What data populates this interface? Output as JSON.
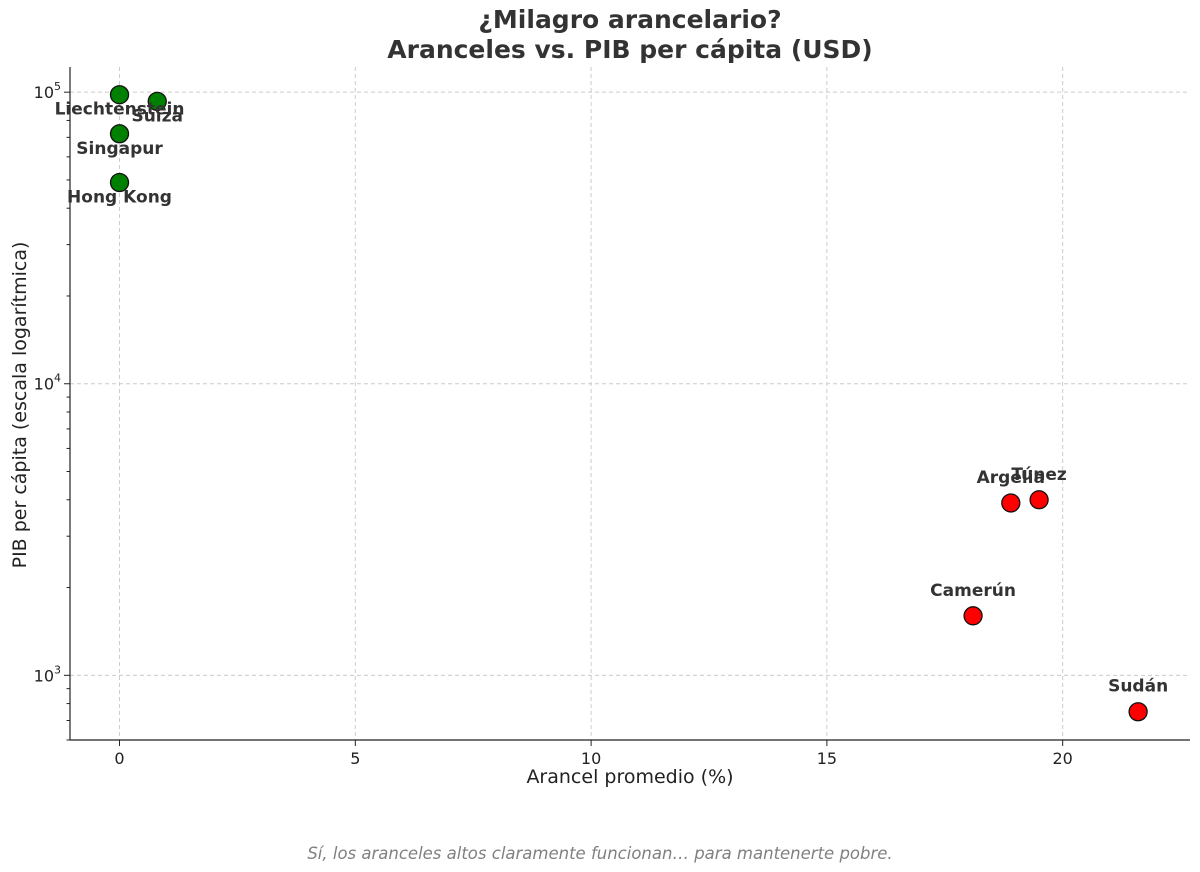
{
  "chart_data": {
    "type": "scatter",
    "title": "¿Milagro arancelario?",
    "subtitle": "Aranceles vs. PIB per cápita (USD)",
    "xlabel": "Arancel promedio (%)",
    "ylabel": "PIB per cápita (escala logarítmica)",
    "x_scale": "linear",
    "y_scale": "log",
    "xlim": [
      -1.05,
      22.7
    ],
    "ylim": [
      600,
      122000
    ],
    "x_ticks": [
      0,
      5,
      10,
      15,
      20
    ],
    "y_ticks": [
      {
        "value": 1000,
        "base": "10",
        "exp": "3"
      },
      {
        "value": 10000,
        "base": "10",
        "exp": "4"
      },
      {
        "value": 100000,
        "base": "10",
        "exp": "5"
      }
    ],
    "grid": true,
    "points": [
      {
        "label": "Liechtenstein",
        "x": 0.0,
        "y": 98000,
        "color": "#008000"
      },
      {
        "label": "Suiza",
        "x": 0.8,
        "y": 93000,
        "color": "#008000"
      },
      {
        "label": "Singapur",
        "x": 0.0,
        "y": 72000,
        "color": "#008000"
      },
      {
        "label": "Hong Kong",
        "x": 0.0,
        "y": 49000,
        "color": "#008000"
      },
      {
        "label": "Argelia",
        "x": 18.9,
        "y": 3900,
        "color": "#ff0000"
      },
      {
        "label": "Túnez",
        "x": 19.5,
        "y": 4000,
        "color": "#ff0000"
      },
      {
        "label": "Camerún",
        "x": 18.1,
        "y": 1600,
        "color": "#ff0000"
      },
      {
        "label": "Sudán",
        "x": 21.6,
        "y": 750,
        "color": "#ff0000"
      }
    ]
  },
  "caption": "Sí, los aranceles altos claramente funcionan… para mantenerte pobre."
}
